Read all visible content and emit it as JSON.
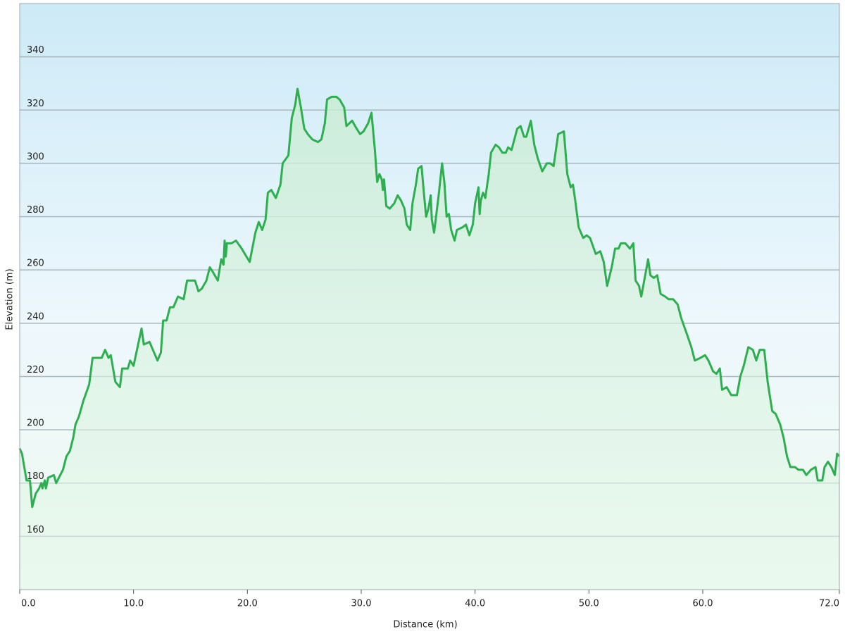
{
  "chart_data": {
    "type": "line",
    "x_label": "Distance  (km)",
    "y_label": "Elevation (m)",
    "x": [
      0.0,
      0.2,
      0.6,
      0.9,
      1.1,
      1.4,
      1.7,
      1.9,
      2.0,
      2.2,
      2.3,
      2.5,
      3.0,
      3.2,
      3.8,
      4.1,
      4.4,
      4.7,
      4.9,
      5.2,
      5.6,
      6.1,
      6.4,
      7.0,
      7.2,
      7.5,
      7.8,
      8.0,
      8.4,
      8.8,
      9.0,
      9.5,
      9.7,
      10.0,
      10.4,
      10.7,
      10.9,
      11.4,
      11.8,
      12.1,
      12.4,
      12.6,
      12.9,
      13.2,
      13.5,
      13.9,
      14.4,
      14.7,
      15.4,
      15.7,
      16.0,
      16.4,
      16.7,
      17.0,
      17.4,
      17.7,
      17.9,
      18.0,
      18.1,
      18.2,
      18.6,
      19.0,
      19.5,
      20.2,
      20.7,
      21.0,
      21.3,
      21.6,
      21.8,
      22.1,
      22.5,
      22.9,
      23.1,
      23.6,
      23.9,
      24.2,
      24.4,
      24.7,
      25.0,
      25.3,
      25.7,
      26.2,
      26.5,
      26.8,
      27.0,
      27.4,
      27.8,
      28.1,
      28.5,
      28.7,
      29.2,
      29.6,
      29.9,
      30.2,
      30.6,
      30.9,
      31.2,
      31.4,
      31.6,
      31.8,
      31.9,
      32.0,
      32.2,
      32.5,
      32.9,
      33.2,
      33.5,
      33.8,
      34.0,
      34.3,
      34.5,
      34.8,
      35.0,
      35.3,
      35.5,
      35.7,
      35.9,
      36.1,
      36.2,
      36.4,
      36.6,
      36.8,
      37.1,
      37.3,
      37.5,
      37.7,
      37.9,
      38.2,
      38.4,
      38.9,
      39.2,
      39.5,
      39.8,
      40.0,
      40.1,
      40.3,
      40.4,
      40.5,
      40.7,
      40.9,
      41.2,
      41.4,
      41.8,
      42.1,
      42.4,
      42.7,
      42.9,
      43.2,
      43.7,
      44.0,
      44.3,
      44.5,
      44.9,
      45.2,
      45.5,
      45.9,
      46.3,
      46.6,
      46.9,
      47.3,
      47.8,
      48.1,
      48.4,
      48.6,
      48.8,
      49.1,
      49.5,
      49.8,
      50.1,
      50.6,
      51.0,
      51.3,
      51.6,
      52.0,
      52.3,
      52.6,
      52.8,
      53.2,
      53.6,
      53.9,
      54.1,
      54.4,
      54.6,
      54.9,
      55.2,
      55.4,
      55.7,
      56.0,
      56.3,
      56.7,
      57.0,
      57.4,
      57.8,
      58.1,
      58.6,
      59.0,
      59.3,
      59.8,
      60.2,
      60.5,
      60.9,
      61.2,
      61.5,
      61.7,
      62.1,
      62.5,
      63.0,
      63.3,
      63.6,
      64.0,
      64.4,
      64.7,
      65.0,
      65.4,
      65.7,
      66.1,
      66.4,
      66.8,
      67.1,
      67.4,
      67.7,
      68.1,
      68.4,
      68.8,
      69.1,
      69.5,
      69.9,
      70.1,
      70.5,
      70.7,
      71.0,
      71.3,
      71.6,
      71.8,
      72.0
    ],
    "values": [
      193,
      191,
      181,
      181,
      171,
      176,
      178,
      180,
      178,
      181,
      178,
      182,
      183,
      180,
      185,
      190,
      192,
      197,
      202,
      205,
      211,
      217,
      227,
      227,
      227,
      230,
      227,
      228,
      218,
      216,
      223,
      223,
      226,
      224,
      232,
      238,
      232,
      233,
      229,
      226,
      229,
      241,
      241,
      246,
      246,
      250,
      249,
      256,
      256,
      252,
      253,
      256,
      261,
      259,
      256,
      264,
      262,
      271,
      265,
      270,
      270,
      271,
      268,
      263,
      274,
      278,
      275,
      279,
      289,
      290,
      287,
      292,
      300,
      303,
      317,
      322,
      328,
      321,
      313,
      311,
      309,
      308,
      309,
      315,
      324,
      325,
      325,
      324,
      321,
      314,
      316,
      313,
      311,
      312,
      315,
      319,
      305,
      293,
      296,
      294,
      290,
      294,
      284,
      283,
      285,
      288,
      286,
      283,
      277,
      275,
      285,
      292,
      298,
      299,
      289,
      280,
      283,
      288,
      279,
      274,
      281,
      288,
      300,
      293,
      280,
      281,
      275,
      271,
      275,
      276,
      277,
      273,
      277,
      285,
      287,
      291,
      281,
      286,
      289,
      287,
      296,
      304,
      307,
      306,
      304,
      304,
      306,
      305,
      313,
      314,
      310,
      310,
      316,
      307,
      302,
      297,
      300,
      300,
      299,
      311,
      312,
      296,
      291,
      292,
      286,
      276,
      272,
      273,
      272,
      266,
      267,
      263,
      254,
      261,
      268,
      268,
      270,
      270,
      268,
      270,
      256,
      254,
      250,
      257,
      264,
      258,
      257,
      258,
      251,
      250,
      249,
      249,
      247,
      242,
      236,
      231,
      226,
      227,
      228,
      226,
      222,
      221,
      223,
      215,
      216,
      213,
      213,
      220,
      224,
      231,
      230,
      226,
      230,
      230,
      218,
      207,
      206,
      202,
      197,
      190,
      186,
      186,
      185,
      185,
      183,
      185,
      186,
      181,
      181,
      186,
      188,
      186,
      183,
      191,
      190
    ],
    "color": "#2eaf4f",
    "xlim": [
      0,
      72
    ],
    "xticks": [
      {
        "value": 0,
        "label": "0.0"
      },
      {
        "value": 10,
        "label": "10.0"
      },
      {
        "value": 20,
        "label": "20.0"
      },
      {
        "value": 30,
        "label": "30.0"
      },
      {
        "value": 40,
        "label": "40.0"
      },
      {
        "value": 50,
        "label": "50.0"
      },
      {
        "value": 60,
        "label": "60.0"
      },
      {
        "value": 72,
        "label": "72.0"
      }
    ],
    "ylim": [
      140,
      360
    ],
    "yticks": [
      160,
      180,
      200,
      220,
      240,
      260,
      280,
      300,
      320,
      340
    ],
    "grid": true
  }
}
